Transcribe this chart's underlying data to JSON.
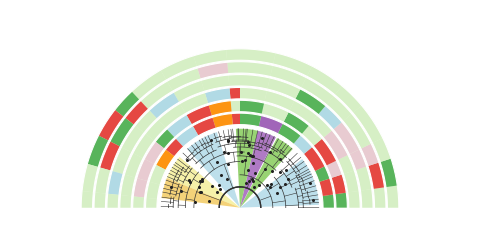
{
  "bg": "#ffffff",
  "tree_r": 0.38,
  "trunk_r": 0.1,
  "ring_bands": [
    {
      "inner": 0.4,
      "outer": 0.455
    },
    {
      "inner": 0.462,
      "outer": 0.517
    },
    {
      "inner": 0.524,
      "outer": 0.579
    },
    {
      "inner": 0.586,
      "outer": 0.641
    },
    {
      "inner": 0.648,
      "outer": 0.703
    },
    {
      "inner": 0.71,
      "outer": 0.765
    }
  ],
  "inner_wedges": [
    {
      "s": 2,
      "e": 38,
      "color": "#add8e6",
      "alpha": 0.8
    },
    {
      "s": 48,
      "e": 62,
      "color": "#7ec850",
      "alpha": 0.8
    },
    {
      "s": 63,
      "e": 77,
      "color": "#9b59b6",
      "alpha": 0.8
    },
    {
      "s": 77,
      "e": 93,
      "color": "#7ec850",
      "alpha": 0.8
    },
    {
      "s": 107,
      "e": 132,
      "color": "#add8e6",
      "alpha": 0.8
    },
    {
      "s": 140,
      "e": 158,
      "color": "#f5f0a0",
      "alpha": 0.9
    },
    {
      "s": 158,
      "e": 173,
      "color": "#f0c040",
      "alpha": 0.7
    }
  ],
  "ring_sectors": [
    {
      "s": 0,
      "e": 8,
      "band": 0,
      "color": "#4caf50"
    },
    {
      "s": 0,
      "e": 8,
      "band": 1,
      "color": "#4caf50"
    },
    {
      "s": 0,
      "e": 8,
      "band": 2,
      "color": "#d5efc3"
    },
    {
      "s": 0,
      "e": 8,
      "band": 3,
      "color": "#d5efc3"
    },
    {
      "s": 0,
      "e": 8,
      "band": 4,
      "color": "#d5efc3"
    },
    {
      "s": 0,
      "e": 8,
      "band": 5,
      "color": "#d5efc3"
    },
    {
      "s": 8,
      "e": 18,
      "band": 0,
      "color": "#e53935"
    },
    {
      "s": 8,
      "e": 18,
      "band": 1,
      "color": "#e53935"
    },
    {
      "s": 8,
      "e": 18,
      "band": 2,
      "color": "#d5efc3"
    },
    {
      "s": 8,
      "e": 18,
      "band": 3,
      "color": "#d5efc3"
    },
    {
      "s": 8,
      "e": 18,
      "band": 4,
      "color": "#e53935"
    },
    {
      "s": 8,
      "e": 18,
      "band": 5,
      "color": "#4caf50"
    },
    {
      "s": 18,
      "e": 26,
      "band": 0,
      "color": "#4caf50"
    },
    {
      "s": 18,
      "e": 26,
      "band": 1,
      "color": "#e8c8d0"
    },
    {
      "s": 18,
      "e": 26,
      "band": 2,
      "color": "#d5efc3"
    },
    {
      "s": 18,
      "e": 26,
      "band": 3,
      "color": "#e8c8d0"
    },
    {
      "s": 18,
      "e": 26,
      "band": 4,
      "color": "#e8c8d0"
    },
    {
      "s": 18,
      "e": 26,
      "band": 5,
      "color": "#d5efc3"
    },
    {
      "s": 26,
      "e": 40,
      "band": 0,
      "color": "#e53935"
    },
    {
      "s": 26,
      "e": 40,
      "band": 1,
      "color": "#e53935"
    },
    {
      "s": 26,
      "e": 40,
      "band": 2,
      "color": "#e8c8d0"
    },
    {
      "s": 26,
      "e": 40,
      "band": 3,
      "color": "#e8c8d0"
    },
    {
      "s": 26,
      "e": 40,
      "band": 4,
      "color": "#d5efc3"
    },
    {
      "s": 26,
      "e": 40,
      "band": 5,
      "color": "#d5efc3"
    },
    {
      "s": 40,
      "e": 50,
      "band": 0,
      "color": "#add8e6"
    },
    {
      "s": 40,
      "e": 50,
      "band": 1,
      "color": "#d5efc3"
    },
    {
      "s": 40,
      "e": 50,
      "band": 2,
      "color": "#d5efc3"
    },
    {
      "s": 40,
      "e": 50,
      "band": 3,
      "color": "#add8e6"
    },
    {
      "s": 40,
      "e": 50,
      "band": 4,
      "color": "#d5efc3"
    },
    {
      "s": 40,
      "e": 50,
      "band": 5,
      "color": "#d5efc3"
    },
    {
      "s": 50,
      "e": 63,
      "band": 0,
      "color": "#4caf50"
    },
    {
      "s": 50,
      "e": 63,
      "band": 1,
      "color": "#4caf50"
    },
    {
      "s": 50,
      "e": 63,
      "band": 2,
      "color": "#d5efc3"
    },
    {
      "s": 50,
      "e": 63,
      "band": 3,
      "color": "#4caf50"
    },
    {
      "s": 50,
      "e": 63,
      "band": 4,
      "color": "#d5efc3"
    },
    {
      "s": 50,
      "e": 63,
      "band": 5,
      "color": "#d5efc3"
    },
    {
      "s": 63,
      "e": 77,
      "band": 0,
      "color": "#9b59b6"
    },
    {
      "s": 63,
      "e": 77,
      "band": 1,
      "color": "#d5efc3"
    },
    {
      "s": 63,
      "e": 77,
      "band": 2,
      "color": "#d5efc3"
    },
    {
      "s": 63,
      "e": 77,
      "band": 3,
      "color": "#d5efc3"
    },
    {
      "s": 63,
      "e": 77,
      "band": 4,
      "color": "#d5efc3"
    },
    {
      "s": 63,
      "e": 77,
      "band": 5,
      "color": "#d5efc3"
    },
    {
      "s": 77,
      "e": 90,
      "band": 0,
      "color": "#4caf50"
    },
    {
      "s": 77,
      "e": 90,
      "band": 1,
      "color": "#4caf50"
    },
    {
      "s": 77,
      "e": 90,
      "band": 2,
      "color": "#d5efc3"
    },
    {
      "s": 77,
      "e": 90,
      "band": 3,
      "color": "#d5efc3"
    },
    {
      "s": 77,
      "e": 90,
      "band": 4,
      "color": "#d5efc3"
    },
    {
      "s": 77,
      "e": 90,
      "band": 5,
      "color": "#d5efc3"
    },
    {
      "s": 90,
      "e": 95,
      "band": 0,
      "color": "#e53935"
    },
    {
      "s": 90,
      "e": 95,
      "band": 1,
      "color": "#d5efc3"
    },
    {
      "s": 90,
      "e": 95,
      "band": 2,
      "color": "#e53935"
    },
    {
      "s": 90,
      "e": 95,
      "band": 3,
      "color": "#d5efc3"
    },
    {
      "s": 90,
      "e": 95,
      "band": 4,
      "color": "#d5efc3"
    },
    {
      "s": 90,
      "e": 95,
      "band": 5,
      "color": "#d5efc3"
    },
    {
      "s": 95,
      "e": 107,
      "band": 0,
      "color": "#ff8c00"
    },
    {
      "s": 95,
      "e": 107,
      "band": 1,
      "color": "#ff8c00"
    },
    {
      "s": 95,
      "e": 107,
      "band": 2,
      "color": "#add8e6"
    },
    {
      "s": 95,
      "e": 107,
      "band": 3,
      "color": "#d5efc3"
    },
    {
      "s": 95,
      "e": 107,
      "band": 4,
      "color": "#e8c8d0"
    },
    {
      "s": 95,
      "e": 107,
      "band": 5,
      "color": "#d5efc3"
    },
    {
      "s": 107,
      "e": 120,
      "band": 0,
      "color": "#e53935"
    },
    {
      "s": 107,
      "e": 120,
      "band": 1,
      "color": "#e53935"
    },
    {
      "s": 107,
      "e": 120,
      "band": 2,
      "color": "#d5efc3"
    },
    {
      "s": 107,
      "e": 120,
      "band": 3,
      "color": "#d5efc3"
    },
    {
      "s": 107,
      "e": 120,
      "band": 4,
      "color": "#d5efc3"
    },
    {
      "s": 107,
      "e": 120,
      "band": 5,
      "color": "#d5efc3"
    },
    {
      "s": 120,
      "e": 133,
      "band": 0,
      "color": "#add8e6"
    },
    {
      "s": 120,
      "e": 133,
      "band": 1,
      "color": "#add8e6"
    },
    {
      "s": 120,
      "e": 133,
      "band": 2,
      "color": "#d5efc3"
    },
    {
      "s": 120,
      "e": 133,
      "band": 3,
      "color": "#add8e6"
    },
    {
      "s": 120,
      "e": 133,
      "band": 4,
      "color": "#d5efc3"
    },
    {
      "s": 120,
      "e": 133,
      "band": 5,
      "color": "#d5efc3"
    },
    {
      "s": 133,
      "e": 142,
      "band": 0,
      "color": "#e53935"
    },
    {
      "s": 133,
      "e": 142,
      "band": 1,
      "color": "#4caf50"
    },
    {
      "s": 133,
      "e": 142,
      "band": 2,
      "color": "#d5efc3"
    },
    {
      "s": 133,
      "e": 142,
      "band": 3,
      "color": "#d5efc3"
    },
    {
      "s": 133,
      "e": 142,
      "band": 4,
      "color": "#e53935"
    },
    {
      "s": 133,
      "e": 142,
      "band": 5,
      "color": "#4caf50"
    },
    {
      "s": 142,
      "e": 153,
      "band": 0,
      "color": "#ff8c00"
    },
    {
      "s": 142,
      "e": 153,
      "band": 1,
      "color": "#e8c8d0"
    },
    {
      "s": 142,
      "e": 153,
      "band": 2,
      "color": "#d5efc3"
    },
    {
      "s": 142,
      "e": 153,
      "band": 3,
      "color": "#d5efc3"
    },
    {
      "s": 142,
      "e": 153,
      "band": 4,
      "color": "#4caf50"
    },
    {
      "s": 142,
      "e": 153,
      "band": 5,
      "color": "#e53935"
    },
    {
      "s": 153,
      "e": 164,
      "band": 0,
      "color": "#d5efc3"
    },
    {
      "s": 153,
      "e": 164,
      "band": 1,
      "color": "#e8c8d0"
    },
    {
      "s": 153,
      "e": 164,
      "band": 2,
      "color": "#d5efc3"
    },
    {
      "s": 153,
      "e": 164,
      "band": 3,
      "color": "#d5efc3"
    },
    {
      "s": 153,
      "e": 164,
      "band": 4,
      "color": "#e53935"
    },
    {
      "s": 153,
      "e": 164,
      "band": 5,
      "color": "#4caf50"
    },
    {
      "s": 164,
      "e": 174,
      "band": 0,
      "color": "#d5efc3"
    },
    {
      "s": 164,
      "e": 174,
      "band": 1,
      "color": "#e8c8d0"
    },
    {
      "s": 164,
      "e": 174,
      "band": 2,
      "color": "#d5efc3"
    },
    {
      "s": 164,
      "e": 174,
      "band": 3,
      "color": "#add8e6"
    },
    {
      "s": 164,
      "e": 174,
      "band": 4,
      "color": "#d5efc3"
    },
    {
      "s": 164,
      "e": 174,
      "band": 5,
      "color": "#d5efc3"
    },
    {
      "s": 174,
      "e": 180,
      "band": 0,
      "color": "#d5efc3"
    },
    {
      "s": 174,
      "e": 180,
      "band": 1,
      "color": "#d5efc3"
    },
    {
      "s": 174,
      "e": 180,
      "band": 2,
      "color": "#d5efc3"
    },
    {
      "s": 174,
      "e": 180,
      "band": 3,
      "color": "#d5efc3"
    },
    {
      "s": 174,
      "e": 180,
      "band": 4,
      "color": "#d5efc3"
    },
    {
      "s": 174,
      "e": 180,
      "band": 5,
      "color": "#d5efc3"
    }
  ],
  "tree_color": "#555555",
  "seed": 1234
}
